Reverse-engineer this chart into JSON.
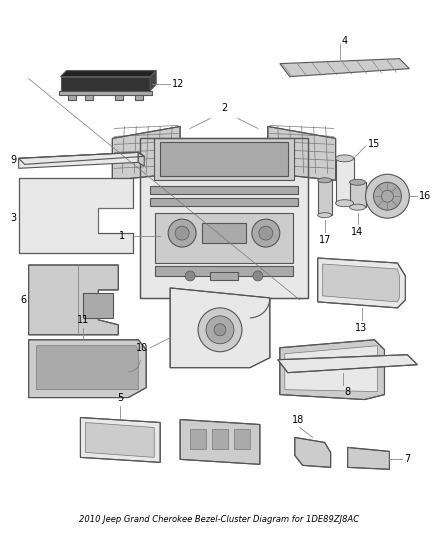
{
  "title": "2010 Jeep Grand Cherokee Bezel-Cluster Diagram for 1DE89ZJ8AC",
  "background_color": "#ffffff",
  "fig_width": 4.38,
  "fig_height": 5.33,
  "dpi": 100,
  "label_fontsize": 7,
  "line_color": "#888888",
  "text_color": "#000000",
  "part_edge_color": "#555555",
  "part_face_light": "#e8e8e8",
  "part_face_mid": "#cccccc",
  "part_face_dark": "#aaaaaa",
  "part_face_black": "#222222"
}
